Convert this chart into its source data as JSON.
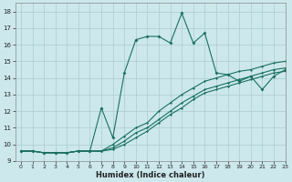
{
  "xlabel": "Humidex (Indice chaleur)",
  "background_color": "#cce8ed",
  "grid_color": "#b0cfd5",
  "line_color": "#1a7060",
  "xlim": [
    -0.5,
    23
  ],
  "ylim": [
    9,
    18.5
  ],
  "xtick_vals": [
    0,
    1,
    2,
    3,
    4,
    5,
    6,
    7,
    8,
    9,
    10,
    11,
    12,
    13,
    14,
    15,
    16,
    17,
    18,
    19,
    20,
    21,
    22,
    23
  ],
  "ytick_vals": [
    9,
    10,
    11,
    12,
    13,
    14,
    15,
    16,
    17,
    18
  ],
  "line1_x": [
    0,
    1,
    2,
    3,
    4,
    5,
    6,
    7,
    8,
    9,
    10,
    11,
    12,
    13,
    14,
    15,
    16,
    17,
    18,
    19,
    20,
    21,
    22,
    23
  ],
  "line1_y": [
    9.6,
    9.6,
    9.5,
    9.5,
    9.5,
    9.6,
    9.6,
    12.2,
    10.4,
    14.3,
    16.3,
    16.5,
    16.5,
    16.1,
    17.9,
    16.1,
    16.7,
    14.3,
    14.2,
    13.8,
    14.1,
    13.3,
    14.1,
    14.5
  ],
  "line2_x": [
    0,
    1,
    2,
    3,
    4,
    5,
    6,
    7,
    8,
    9,
    10,
    11,
    12,
    13,
    14,
    15,
    16,
    17,
    18,
    19,
    20,
    21,
    22,
    23
  ],
  "line2_y": [
    9.6,
    9.6,
    9.5,
    9.5,
    9.5,
    9.6,
    9.6,
    9.6,
    10.0,
    10.5,
    11.0,
    11.3,
    12.0,
    12.5,
    13.0,
    13.4,
    13.8,
    14.0,
    14.2,
    14.4,
    14.5,
    14.7,
    14.9,
    15.0
  ],
  "line3_x": [
    0,
    1,
    2,
    3,
    4,
    5,
    6,
    7,
    8,
    9,
    10,
    11,
    12,
    13,
    14,
    15,
    16,
    17,
    18,
    19,
    20,
    21,
    22,
    23
  ],
  "line3_y": [
    9.6,
    9.6,
    9.5,
    9.5,
    9.5,
    9.6,
    9.6,
    9.6,
    9.8,
    10.2,
    10.7,
    11.0,
    11.5,
    12.0,
    12.5,
    12.9,
    13.3,
    13.5,
    13.7,
    13.9,
    14.1,
    14.3,
    14.5,
    14.6
  ],
  "line4_x": [
    0,
    1,
    2,
    3,
    4,
    5,
    6,
    7,
    8,
    9,
    10,
    11,
    12,
    13,
    14,
    15,
    16,
    17,
    18,
    19,
    20,
    21,
    22,
    23
  ],
  "line4_y": [
    9.6,
    9.6,
    9.5,
    9.5,
    9.5,
    9.6,
    9.6,
    9.6,
    9.7,
    10.0,
    10.4,
    10.8,
    11.3,
    11.8,
    12.2,
    12.7,
    13.1,
    13.3,
    13.5,
    13.7,
    13.9,
    14.1,
    14.3,
    14.4
  ]
}
